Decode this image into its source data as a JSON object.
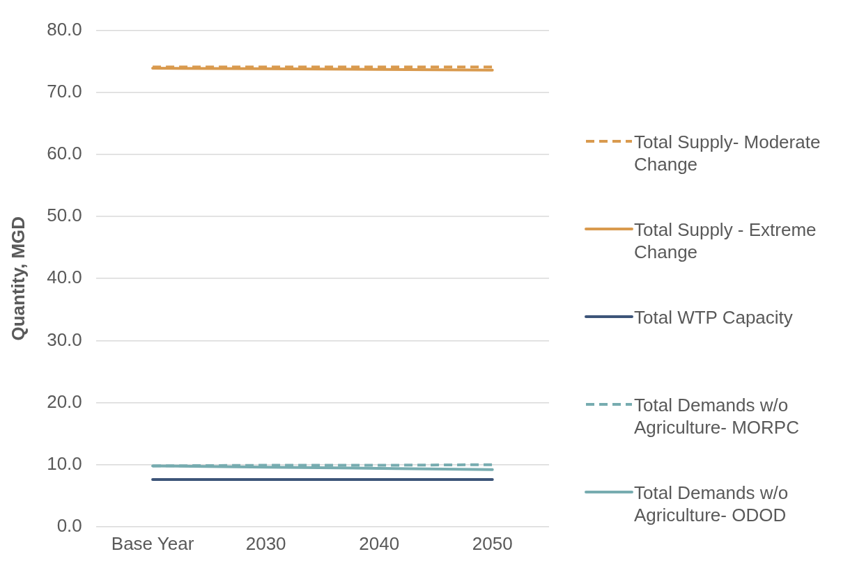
{
  "chart_data": {
    "type": "line",
    "ylabel": "Quantity, MGD",
    "categories": [
      "Base Year",
      "2030",
      "2040",
      "2050"
    ],
    "series": [
      {
        "name": "Total Supply- Moderate Change",
        "color": "#d99a4e",
        "line_style": "dashed",
        "values": [
          74.1,
          74.1,
          74.1,
          74.1
        ]
      },
      {
        "name": "Total Supply - Extreme Change",
        "color": "#d99a4e",
        "line_style": "solid",
        "values": [
          73.9,
          73.8,
          73.7,
          73.6
        ]
      },
      {
        "name": "Total WTP Capacity",
        "color": "#3d5579",
        "line_style": "solid",
        "values": [
          7.6,
          7.6,
          7.6,
          7.6
        ]
      },
      {
        "name": "Total Demands w/o Agriculture- MORPC",
        "color": "#77acb0",
        "line_style": "dashed",
        "values": [
          9.8,
          9.9,
          9.9,
          10.0
        ]
      },
      {
        "name": "Total Demands w/o Agriculture- ODOD",
        "color": "#77acb0",
        "line_style": "solid",
        "values": [
          9.8,
          9.6,
          9.4,
          9.2
        ]
      }
    ],
    "ylim": [
      0,
      80
    ],
    "yticks": [
      {
        "value": 0,
        "label": "0.0"
      },
      {
        "value": 10,
        "label": "10.0"
      },
      {
        "value": 20,
        "label": "20.0"
      },
      {
        "value": 30,
        "label": "30.0"
      },
      {
        "value": 40,
        "label": "40.0"
      },
      {
        "value": 50,
        "label": "50.0"
      },
      {
        "value": 60,
        "label": "60.0"
      },
      {
        "value": 70,
        "label": "70.0"
      },
      {
        "value": 80,
        "label": "80.0"
      }
    ],
    "grid": "y",
    "legend": "right",
    "marker": "none"
  }
}
